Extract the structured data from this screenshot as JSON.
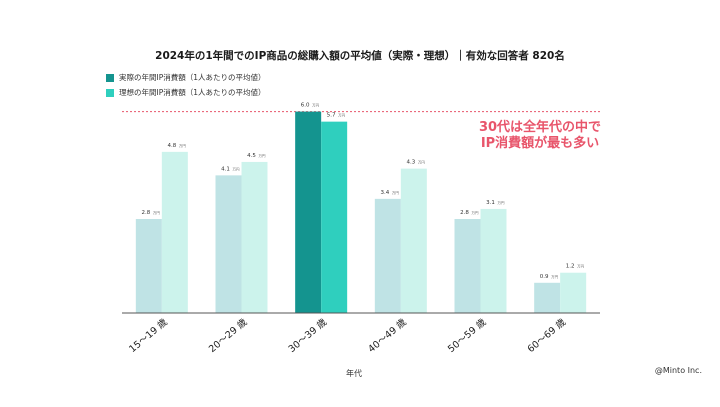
{
  "chart_data": {
    "type": "bar",
    "title": "2024年の1年間でのIP商品の総購入額の平均値（実際・理想）｜有効な回答者 820名",
    "xlabel": "年代",
    "ylabel": "",
    "unit": "万円",
    "categories": [
      "15～19 歳",
      "20～29 歳",
      "30～39 歳",
      "40～49 歳",
      "50～59 歳",
      "60～69 歳"
    ],
    "series": [
      {
        "name": "実際の年間IP消費額（1人あたりの平均値）",
        "values": [
          2.8,
          4.1,
          6.0,
          3.4,
          2.8,
          0.9
        ]
      },
      {
        "name": "理想の年間IP消費額（1人あたりの平均値）",
        "values": [
          4.8,
          4.5,
          5.7,
          4.3,
          3.1,
          1.2
        ]
      }
    ],
    "highlight_category": "30～39 歳",
    "reference_line_value": 6.0,
    "ylim": [
      0,
      7
    ]
  },
  "colors": {
    "actual": "#bfe3e5",
    "ideal": "#ccf3ec",
    "actual_highlight": "#14948f",
    "ideal_highlight": "#2fcfbe",
    "callout": "#e8556b",
    "legend_actual": "#14948f",
    "legend_ideal": "#2fcfbe"
  },
  "callout": {
    "line1": "30代は全年代の中で",
    "line2": "IP消費額が最も多い"
  },
  "credit": "@Minto Inc."
}
